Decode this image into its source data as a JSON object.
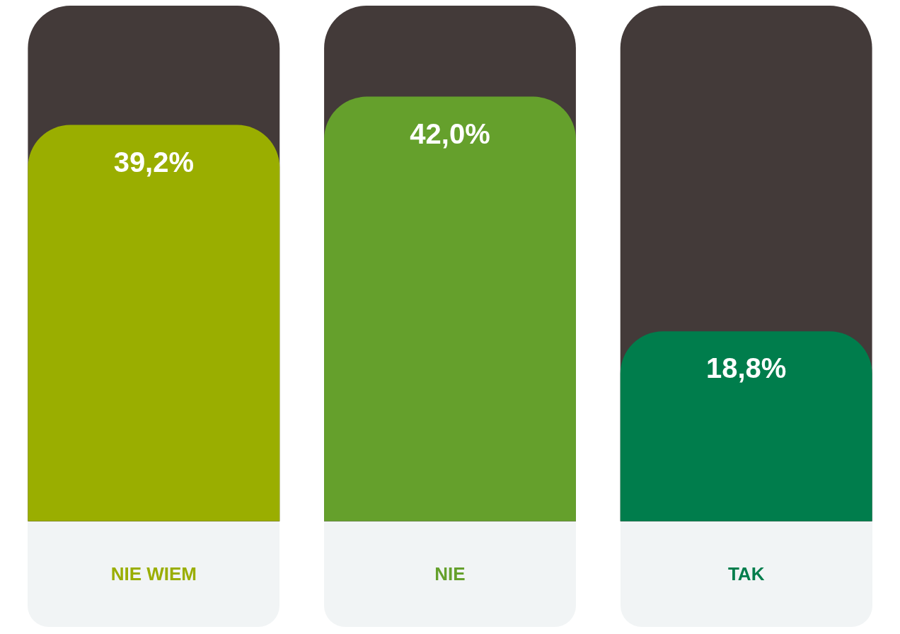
{
  "chart_data": {
    "type": "bar",
    "categories": [
      "NIE WIEM",
      "NIE",
      "TAK"
    ],
    "values": [
      39.2,
      42.0,
      18.8
    ],
    "colors": [
      "#9aae00",
      "#65a02c",
      "#007d4c"
    ],
    "value_labels": [
      "39,2%",
      "42,0%",
      "18,8%"
    ],
    "ylim": [
      0,
      51
    ],
    "grid": false,
    "legend": false
  }
}
